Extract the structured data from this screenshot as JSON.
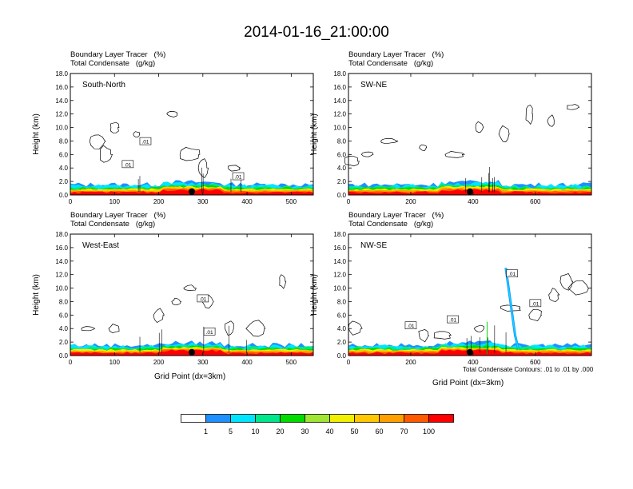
{
  "title": "2014-01-16_21:00:00",
  "field_labels": {
    "tracer": "Boundary Layer Tracer   (%)",
    "condensate": "Total Condensate   (g/kg)"
  },
  "axis": {
    "ylabel": "Height (km)",
    "xlabel": "Grid Point (dx=3km)"
  },
  "footnote": "Total Condensate Contours: .01 to .01 by .000",
  "colors": {
    "bands": [
      "#ffffff",
      "#1e90ff",
      "#00e5ff",
      "#00e68a",
      "#00dc00",
      "#a0e632",
      "#f0f000",
      "#ffc800",
      "#ffa000",
      "#ff5a00",
      "#ff0000"
    ]
  },
  "colorbar": {
    "labels": [
      "1",
      "5",
      "10",
      "20",
      "30",
      "40",
      "50",
      "60",
      "70",
      "100"
    ]
  },
  "chart_data": [
    {
      "type": "heatmap",
      "panel": "South-North",
      "xlim": [
        0,
        550
      ],
      "ylim": [
        0,
        18
      ],
      "xticks": [
        "0",
        "100",
        "200",
        "300",
        "400",
        "500"
      ],
      "yticks": [
        "0.0",
        "2.0",
        "4.0",
        "6.0",
        "8.0",
        "10.0",
        "12.0",
        "14.0",
        "16.0",
        "18.0"
      ],
      "contour_labels": [
        ".01",
        ".01",
        ".01"
      ],
      "marker_x": 275
    },
    {
      "type": "heatmap",
      "panel": "SW-NE",
      "xlim": [
        0,
        780
      ],
      "ylim": [
        0,
        18
      ],
      "xticks": [
        "0",
        "200",
        "400",
        "600"
      ],
      "yticks": [
        "0.0",
        "2.0",
        "4.0",
        "6.0",
        "8.0",
        "10.0",
        "12.0",
        "14.0",
        "16.0",
        "18.0"
      ],
      "contour_labels": [],
      "marker_x": 390
    },
    {
      "type": "heatmap",
      "panel": "West-East",
      "xlim": [
        0,
        550
      ],
      "ylim": [
        0,
        18
      ],
      "xticks": [
        "0",
        "100",
        "200",
        "300",
        "400",
        "500"
      ],
      "yticks": [
        "0.0",
        "2.0",
        "4.0",
        "6.0",
        "8.0",
        "10.0",
        "12.0",
        "14.0",
        "16.0",
        "18.0"
      ],
      "contour_labels": [
        ".01",
        ".01"
      ],
      "marker_x": 275
    },
    {
      "type": "heatmap",
      "panel": "NW-SE",
      "xlim": [
        0,
        780
      ],
      "ylim": [
        0,
        18
      ],
      "xticks": [
        "0",
        "200",
        "400",
        "600"
      ],
      "yticks": [
        "0.0",
        "2.0",
        "4.0",
        "6.0",
        "8.0",
        "10.0",
        "12.0",
        "14.0",
        "16.0",
        "18.0"
      ],
      "contour_labels": [
        ".01",
        ".01",
        ".01",
        ".01"
      ],
      "marker_x": 390
    }
  ]
}
